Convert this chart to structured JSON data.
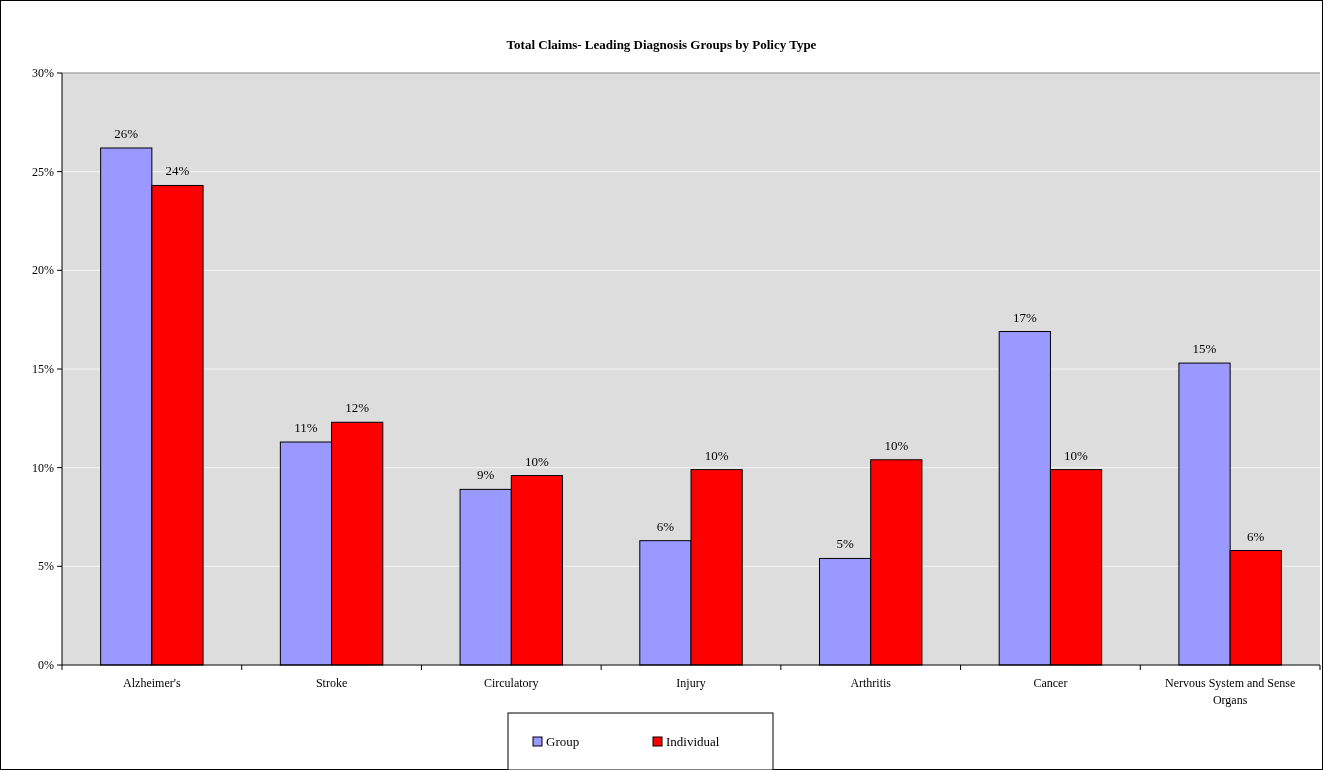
{
  "chart_data": {
    "type": "bar",
    "title": "Total Claims- Leading Diagnosis Groups by  Policy Type",
    "categories": [
      "Alzheimer's",
      "Stroke",
      "Circulatory",
      "Injury",
      "Arthritis",
      "Cancer",
      "Nervous System and Sense Organs"
    ],
    "series": [
      {
        "name": "Group",
        "color": "#9999ff",
        "values": [
          26.2,
          11.3,
          8.9,
          6.3,
          5.4,
          16.9,
          15.3
        ],
        "value_labels": [
          "26%",
          "11%",
          "9%",
          "6%",
          "5%",
          "17%",
          "15%"
        ]
      },
      {
        "name": "Individual",
        "color": "#ff0000",
        "values": [
          24.3,
          12.3,
          9.6,
          9.9,
          10.4,
          9.9,
          5.8
        ],
        "value_labels": [
          "24%",
          "12%",
          "10%",
          "10%",
          "10%",
          "10%",
          "6%"
        ]
      }
    ],
    "ylim": [
      0,
      30
    ],
    "yticks": [
      {
        "value": 0,
        "label": "0%"
      },
      {
        "value": 5,
        "label": "5%"
      },
      {
        "value": 10,
        "label": "10%"
      },
      {
        "value": 15,
        "label": "15%"
      },
      {
        "value": 20,
        "label": "20%"
      },
      {
        "value": 25,
        "label": "25%"
      },
      {
        "value": 30,
        "label": "30%"
      }
    ],
    "grid": "y",
    "legend": "bottom"
  }
}
